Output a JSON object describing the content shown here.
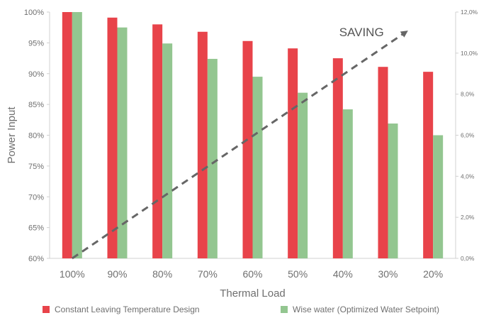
{
  "chart_data": {
    "type": "bar",
    "categories": [
      "100%",
      "90%",
      "80%",
      "70%",
      "60%",
      "50%",
      "40%",
      "30%",
      "20%"
    ],
    "xlabel": "Thermal Load",
    "ylabel": "Power Input",
    "ylim": [
      60,
      100
    ],
    "yticks": [
      "60%",
      "65%",
      "70%",
      "75%",
      "80%",
      "85%",
      "90%",
      "95%",
      "100%"
    ],
    "y2lim": [
      0,
      12
    ],
    "y2ticks": [
      "0,0%",
      "2,0%",
      "4,0%",
      "6,0%",
      "8,0%",
      "10,0%",
      "12,0%"
    ],
    "series": [
      {
        "name": "Constant Leaving Temperature Design",
        "color": "#e8434a",
        "values": [
          100,
          99.1,
          98.0,
          96.8,
          95.3,
          94.1,
          92.5,
          91.1,
          90.3
        ]
      },
      {
        "name": "Wise water (Optimized Water Setpoint)",
        "color": "#93c690",
        "values": [
          100,
          97.5,
          94.9,
          92.4,
          89.5,
          86.9,
          84.2,
          81.9,
          80.0
        ]
      }
    ],
    "trend": {
      "label": "SAVING",
      "x": [
        "100%",
        "30%"
      ],
      "y2": [
        0,
        11
      ]
    },
    "legend_position": "bottom",
    "grid": false
  }
}
